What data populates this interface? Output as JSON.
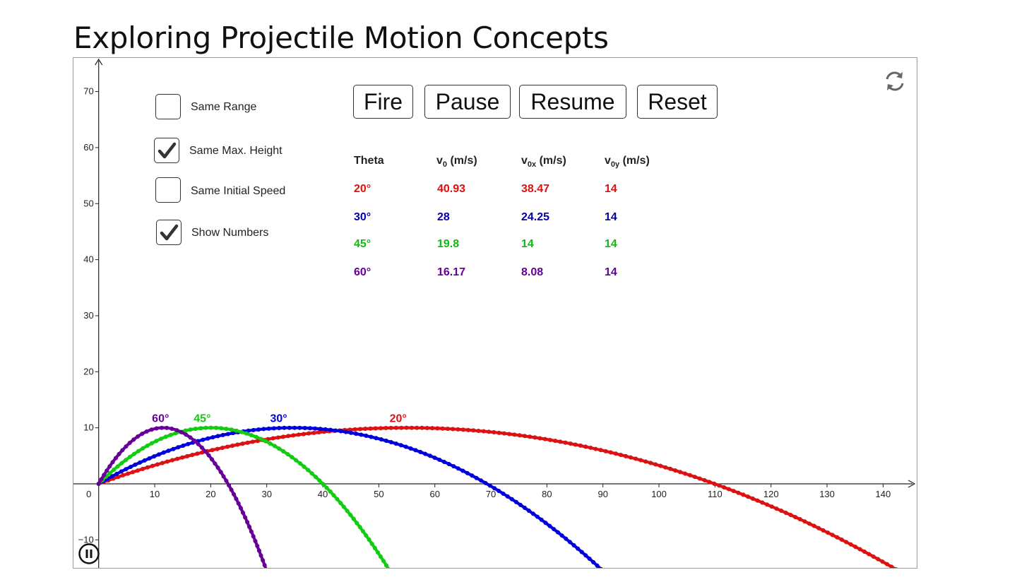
{
  "page": {
    "title": "Exploring Projectile Motion Concepts"
  },
  "controls": {
    "checkboxes": [
      {
        "id": "same-range",
        "label": "Same Range",
        "checked": false
      },
      {
        "id": "same-max-height",
        "label": "Same Max. Height",
        "checked": true
      },
      {
        "id": "same-initial-speed",
        "label": "Same Initial Speed",
        "checked": false
      },
      {
        "id": "show-numbers",
        "label": "Show Numbers",
        "checked": true
      }
    ],
    "buttons": {
      "fire": "Fire",
      "pause": "Pause",
      "resume": "Resume",
      "reset": "Reset"
    }
  },
  "table": {
    "headers": {
      "theta": "Theta",
      "v0": {
        "main": "v",
        "sub": "0",
        "unit": " (m/s)"
      },
      "v0x": {
        "main": "v",
        "sub": "0x",
        "unit": " (m/s)"
      },
      "v0y": {
        "main": "v",
        "sub": "0y",
        "unit": " (m/s)"
      }
    },
    "rows": [
      {
        "theta": "20°",
        "v0": "40.93",
        "v0x": "38.47",
        "v0y": "14",
        "color": "#dd1111"
      },
      {
        "theta": "30°",
        "v0": "28",
        "v0x": "24.25",
        "v0y": "14",
        "color": "#0000aa"
      },
      {
        "theta": "45°",
        "v0": "19.8",
        "v0x": "14",
        "v0y": "14",
        "color": "#11bb11"
      },
      {
        "theta": "60°",
        "v0": "16.17",
        "v0x": "8.08",
        "v0y": "14",
        "color": "#660099"
      }
    ]
  },
  "chart_data": {
    "type": "scatter",
    "title": "",
    "xlabel": "",
    "ylabel": "",
    "xlim": [
      -4.5,
      146
    ],
    "ylim": [
      -15,
      76
    ],
    "x_ticks": [
      "0",
      "10",
      "20",
      "30",
      "40",
      "50",
      "60",
      "70",
      "80",
      "90",
      "100",
      "110",
      "120",
      "130",
      "140"
    ],
    "y_ticks": [
      "−10",
      "10",
      "20",
      "30",
      "40",
      "50",
      "60",
      "70"
    ],
    "gravity": 9.8,
    "series": [
      {
        "name": "20°",
        "angle_deg": 20,
        "vx": 38.47,
        "vy": 14,
        "color": "#dd1111"
      },
      {
        "name": "30°",
        "angle_deg": 30,
        "vx": 24.25,
        "vy": 14,
        "color": "#0000dd"
      },
      {
        "name": "45°",
        "angle_deg": 45,
        "vx": 14,
        "vy": 14,
        "color": "#11cc11"
      },
      {
        "name": "60°",
        "angle_deg": 60,
        "vx": 8.08,
        "vy": 14,
        "color": "#660099"
      }
    ]
  },
  "icons": {
    "refresh": "refresh-icon",
    "pause_anim": "pause-circle-icon",
    "check": "checkmark-icon"
  }
}
